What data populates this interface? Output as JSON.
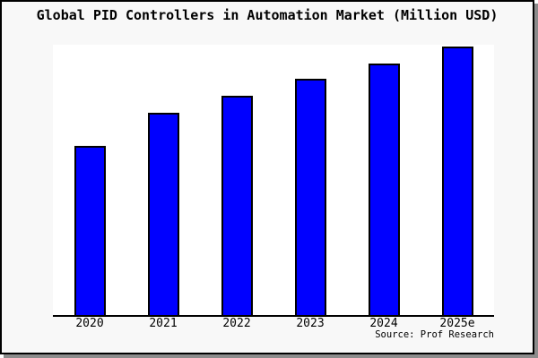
{
  "window": {
    "background": "#f8f8f8",
    "border_color": "#000000",
    "shadow_color": "#8c8c8c"
  },
  "header": {
    "title": "Global PID Controllers in Automation Market (Million USD)"
  },
  "chart_data": {
    "type": "bar",
    "title": "Global PID Controllers in Automation Market (Million USD)",
    "categories": [
      "2020",
      "2021",
      "2022",
      "2023",
      "2024",
      "2025e"
    ],
    "values": [
      63.0,
      75.3,
      81.7,
      88.0,
      93.8,
      100.0
    ],
    "values_note": "y-axis has no tick labels; values estimated from bar pixel heights as percent of tallest bar (2025e = 100)",
    "ylim": [
      0,
      100
    ],
    "xlabel": "",
    "ylabel": "",
    "grid": false,
    "legend": false,
    "plot_bg": "#ffffff",
    "bar_color": "#0000ff",
    "bar_border_color": "#000000"
  },
  "footer": {
    "source": "Source: Prof Research"
  }
}
